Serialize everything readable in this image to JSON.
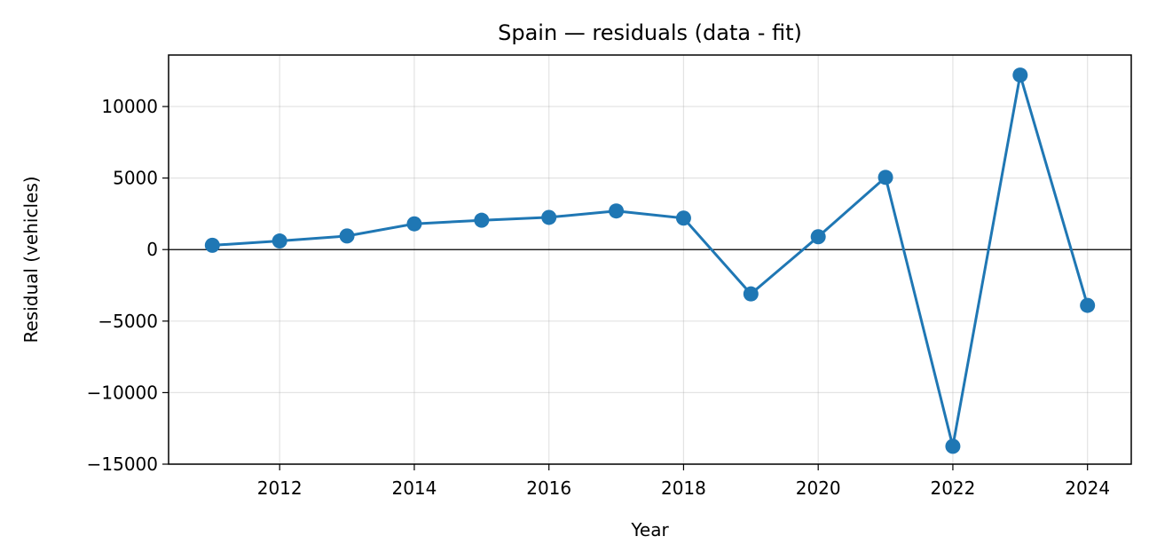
{
  "chart_data": {
    "type": "line",
    "title": "Spain — residuals (data - fit)",
    "xlabel": "Year",
    "ylabel": "Residual (vehicles)",
    "xlim": [
      2010.35,
      2024.65
    ],
    "ylim": [
      -15000,
      13600
    ],
    "x_ticks": [
      2012,
      2014,
      2016,
      2018,
      2020,
      2022,
      2024
    ],
    "x_tick_labels": [
      "2012",
      "2014",
      "2016",
      "2018",
      "2020",
      "2022",
      "2024"
    ],
    "y_ticks": [
      10000,
      5000,
      0,
      -5000,
      -10000,
      -15000
    ],
    "y_tick_labels": [
      "10000",
      "5000",
      "0",
      "−5000",
      "−10000",
      "−15000"
    ],
    "grid": true,
    "zero_line": true,
    "color": "#1f77b4",
    "series": [
      {
        "x": [
          2011,
          2012,
          2013,
          2014,
          2015,
          2016,
          2017,
          2018,
          2019,
          2020,
          2021,
          2022,
          2023,
          2024
        ],
        "values": [
          300,
          600,
          950,
          1800,
          2050,
          2250,
          2700,
          2200,
          -3100,
          900,
          5050,
          -13750,
          12200,
          -3900
        ]
      }
    ]
  }
}
